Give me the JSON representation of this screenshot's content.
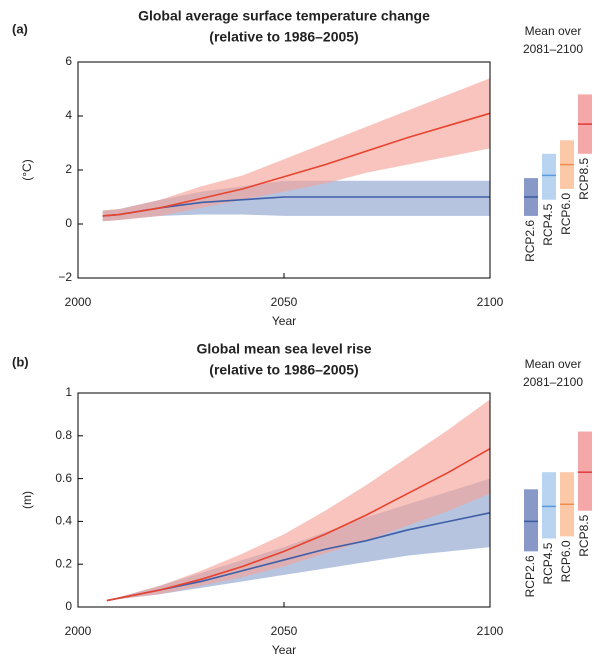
{
  "chart_data": [
    {
      "type": "line",
      "panel_label": "(a)",
      "title": "Global average surface temperature change",
      "subtitle": "(relative to 1986–2005)",
      "y_label": "(°C)",
      "x_label": "Year",
      "x": [
        2006,
        2010,
        2020,
        2030,
        2040,
        2050,
        2060,
        2070,
        2080,
        2090,
        2100
      ],
      "xlim": [
        2000,
        2100
      ],
      "xticks": [
        2000,
        2050,
        2100
      ],
      "ylim": [
        -2,
        6
      ],
      "yticks": [
        {
          "value": -2,
          "label": "−2"
        },
        0,
        2,
        4,
        6
      ],
      "series": [
        {
          "color": "#3e5fa8",
          "band_color": "#8fa4d0",
          "values": [
            0.3,
            0.35,
            0.6,
            0.8,
            0.9,
            1.0,
            1.0,
            1.0,
            1.0,
            1.0,
            1.0
          ],
          "low": [
            0.1,
            0.15,
            0.3,
            0.35,
            0.35,
            0.3,
            0.3,
            0.3,
            0.3,
            0.3,
            0.3
          ],
          "high": [
            0.5,
            0.55,
            0.9,
            1.2,
            1.4,
            1.6,
            1.6,
            1.6,
            1.6,
            1.6,
            1.6
          ]
        },
        {
          "color": "#e8432f",
          "band_color": "#f4a49a",
          "values": [
            0.3,
            0.35,
            0.6,
            0.95,
            1.3,
            1.75,
            2.2,
            2.7,
            3.2,
            3.65,
            4.1
          ],
          "low": [
            0.1,
            0.15,
            0.3,
            0.6,
            0.9,
            1.2,
            1.5,
            1.9,
            2.2,
            2.5,
            2.8
          ],
          "high": [
            0.5,
            0.55,
            0.9,
            1.4,
            1.8,
            2.4,
            3.0,
            3.6,
            4.2,
            4.8,
            5.4
          ]
        }
      ],
      "side_title": [
        "Mean over",
        "2081–2100"
      ],
      "bars": [
        {
          "name": "RCP2.6",
          "color": "#8899c8",
          "line_color": "#3a5aa0",
          "low": 0.3,
          "mean": 1.0,
          "high": 1.7
        },
        {
          "name": "RCP4.5",
          "color": "#b8d4f0",
          "line_color": "#5a9be0",
          "low": 0.9,
          "mean": 1.8,
          "high": 2.6
        },
        {
          "name": "RCP6.0",
          "color": "#fbc9a8",
          "line_color": "#f08c50",
          "low": 1.3,
          "mean": 2.2,
          "high": 3.1
        },
        {
          "name": "RCP8.5",
          "color": "#f5a8a8",
          "line_color": "#e03a3a",
          "low": 2.6,
          "mean": 3.7,
          "high": 4.8
        }
      ]
    },
    {
      "type": "line",
      "panel_label": "(b)",
      "title": "Global mean sea level rise",
      "subtitle": "(relative to 1986–2005)",
      "y_label": "(m)",
      "x_label": "Year",
      "x": [
        2007,
        2020,
        2030,
        2040,
        2050,
        2060,
        2070,
        2080,
        2090,
        2100
      ],
      "xlim": [
        2000,
        2100
      ],
      "xticks": [
        2000,
        2050,
        2100
      ],
      "ylim": [
        0,
        1
      ],
      "yticks": [
        0,
        0.2,
        0.4,
        0.6,
        0.8,
        1
      ],
      "series": [
        {
          "color": "#3e5fa8",
          "band_color": "#8fa4d0",
          "values": [
            0.03,
            0.08,
            0.12,
            0.17,
            0.22,
            0.27,
            0.31,
            0.36,
            0.4,
            0.44
          ],
          "low": [
            0.03,
            0.06,
            0.09,
            0.12,
            0.15,
            0.18,
            0.21,
            0.24,
            0.26,
            0.28
          ],
          "high": [
            0.03,
            0.1,
            0.16,
            0.22,
            0.28,
            0.35,
            0.42,
            0.48,
            0.54,
            0.6
          ]
        },
        {
          "color": "#e8432f",
          "band_color": "#f4a49a",
          "values": [
            0.03,
            0.08,
            0.13,
            0.19,
            0.26,
            0.34,
            0.43,
            0.53,
            0.63,
            0.74
          ],
          "low": [
            0.03,
            0.06,
            0.1,
            0.14,
            0.19,
            0.25,
            0.31,
            0.38,
            0.45,
            0.53
          ],
          "high": [
            0.03,
            0.1,
            0.17,
            0.25,
            0.34,
            0.45,
            0.57,
            0.7,
            0.83,
            0.97
          ]
        }
      ],
      "side_title": [
        "Mean over",
        "2081–2100"
      ],
      "bars": [
        {
          "name": "RCP2.6",
          "color": "#8899c8",
          "line_color": "#3a5aa0",
          "low": 0.26,
          "mean": 0.4,
          "high": 0.55
        },
        {
          "name": "RCP4.5",
          "color": "#b8d4f0",
          "line_color": "#5a9be0",
          "low": 0.32,
          "mean": 0.47,
          "high": 0.63
        },
        {
          "name": "RCP6.0",
          "color": "#fbc9a8",
          "line_color": "#f08c50",
          "low": 0.33,
          "mean": 0.48,
          "high": 0.63
        },
        {
          "name": "RCP8.5",
          "color": "#f5a8a8",
          "line_color": "#e03a3a",
          "low": 0.45,
          "mean": 0.63,
          "high": 0.82
        }
      ]
    }
  ]
}
